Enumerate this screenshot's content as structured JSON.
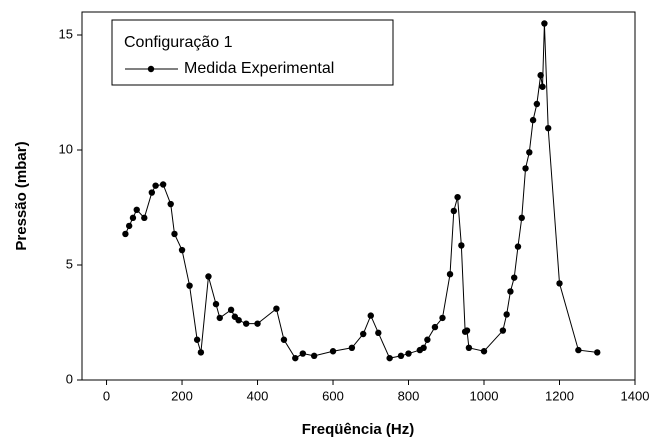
{
  "chart_data": {
    "type": "line",
    "x_label": "Freqüência (Hz)",
    "y_label": "Pressão (mbar)",
    "legend_title": "Configuração 1",
    "legend": "upper left",
    "xlim": [
      -65,
      1400
    ],
    "xticks": [
      0,
      200,
      400,
      600,
      800,
      1000,
      1200,
      1400
    ],
    "ylim": [
      0,
      16
    ],
    "yticks": [
      0,
      5,
      10,
      15
    ],
    "x": [
      50,
      60,
      70,
      80,
      100,
      120,
      130,
      150,
      170,
      180,
      200,
      220,
      240,
      250,
      270,
      290,
      300,
      330,
      340,
      350,
      370,
      400,
      450,
      470,
      500,
      520,
      550,
      600,
      650,
      680,
      700,
      720,
      750,
      780,
      800,
      830,
      840,
      850,
      870,
      890,
      910,
      920,
      930,
      940,
      950,
      955,
      960,
      1000,
      1050,
      1060,
      1070,
      1080,
      1090,
      1100,
      1110,
      1120,
      1130,
      1140,
      1150,
      1155,
      1160,
      1170,
      1200,
      1250,
      1300
    ],
    "series": [
      {
        "name": "Medida Experimental",
        "color": "#000000",
        "values": [
          6.35,
          6.7,
          7.05,
          7.4,
          7.05,
          8.15,
          8.45,
          8.5,
          7.65,
          6.35,
          5.65,
          4.1,
          1.75,
          1.2,
          4.5,
          3.3,
          2.7,
          3.05,
          2.75,
          2.6,
          2.45,
          2.45,
          3.1,
          1.75,
          0.95,
          1.15,
          1.05,
          1.25,
          1.4,
          2.0,
          2.8,
          2.05,
          0.95,
          1.05,
          1.15,
          1.3,
          1.4,
          1.75,
          2.3,
          2.7,
          4.6,
          7.35,
          7.95,
          5.85,
          2.1,
          2.15,
          1.4,
          1.25,
          2.15,
          2.85,
          3.85,
          4.45,
          5.8,
          7.05,
          9.2,
          9.9,
          11.3,
          12.0,
          13.25,
          12.75,
          15.5,
          10.95,
          4.2,
          1.3,
          1.2
        ]
      }
    ]
  }
}
